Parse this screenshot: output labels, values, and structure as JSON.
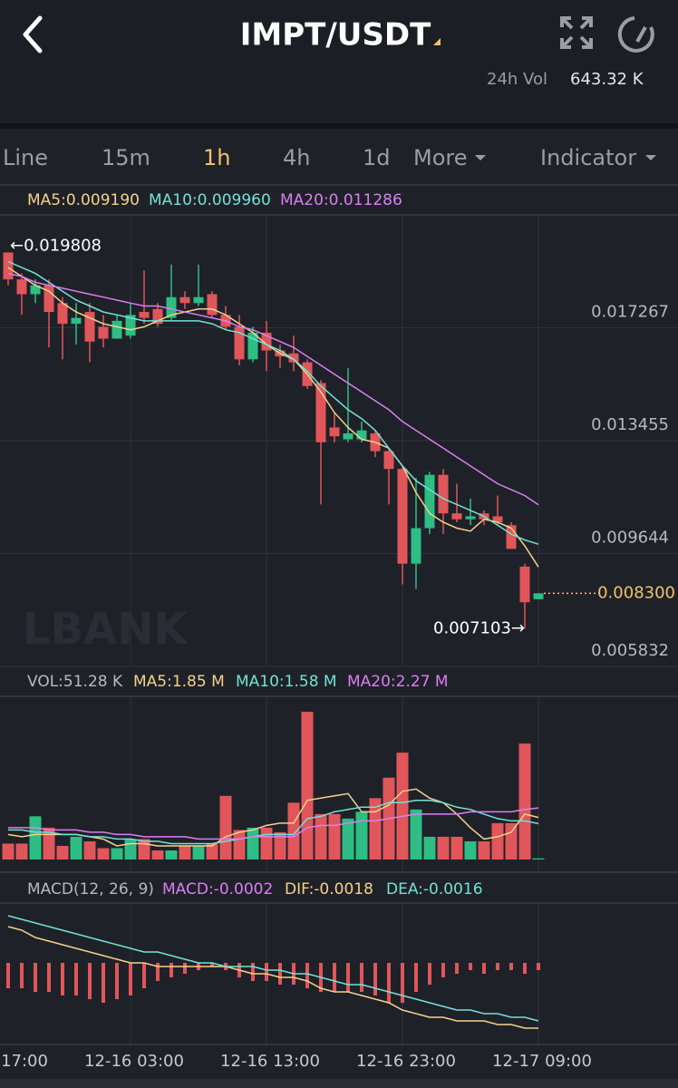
{
  "header": {
    "title": "IMPT/USDT",
    "vol_label": "24h Vol",
    "vol_value": "643.32 K"
  },
  "tabs": [
    "Line",
    "15m",
    "1h",
    "4h",
    "1d",
    "More",
    "Indicator"
  ],
  "active_tab": 2,
  "watermark": "LBANK",
  "chart_data": [
    {
      "type": "candlestick",
      "xlim": [
        -0.6,
        39.8
      ],
      "xticks": [
        {
          "value": -1,
          "label": "17:00"
        },
        {
          "value": 9,
          "label": "12-16 03:00"
        },
        {
          "value": 19,
          "label": "12-16 13:00"
        },
        {
          "value": 29,
          "label": "12-16 23:00"
        },
        {
          "value": 39,
          "label": "12-17 09:00"
        }
      ],
      "ylim": [
        0.005832,
        0.021078
      ],
      "yticks": [
        0.005832,
        0.009644,
        0.013455,
        0.017267
      ],
      "grid": true,
      "up_color": "#2dbd85",
      "down_color": "#e0565b",
      "open": [
        0.019808,
        0.0189,
        0.0184,
        0.0187,
        0.0181,
        0.0174,
        0.0178,
        0.0173,
        0.0169,
        0.017,
        0.0178,
        0.0179,
        0.0176,
        0.0183,
        0.0181,
        0.0184,
        0.0177,
        0.0173,
        0.0162,
        0.0171,
        0.0165,
        0.0164,
        0.0161,
        0.0154,
        0.0139,
        0.0135,
        0.0135,
        0.0137,
        0.0131,
        0.0125,
        0.0093,
        0.0105,
        0.0123,
        0.011,
        0.0108,
        0.011,
        0.0109,
        0.0106,
        0.0092,
        0.0081
      ],
      "high": [
        0.019808,
        0.0191,
        0.0189,
        0.0189,
        0.0183,
        0.0181,
        0.0181,
        0.0177,
        0.0177,
        0.0181,
        0.0192,
        0.0181,
        0.0194,
        0.0185,
        0.0194,
        0.0185,
        0.018,
        0.0177,
        0.0173,
        0.0175,
        0.0167,
        0.017,
        0.0162,
        0.0155,
        0.0144,
        0.0159,
        0.0141,
        0.0138,
        0.0132,
        0.0126,
        0.0122,
        0.0124,
        0.0125,
        0.012,
        0.0115,
        0.0111,
        0.0116,
        0.0107,
        0.0093,
        0.0083
      ],
      "low": [
        0.0187,
        0.0177,
        0.0181,
        0.0166,
        0.0162,
        0.0167,
        0.0161,
        0.0166,
        0.0169,
        0.0169,
        0.0174,
        0.0173,
        0.0175,
        0.0179,
        0.018,
        0.0176,
        0.0172,
        0.016,
        0.0161,
        0.0158,
        0.0159,
        0.0158,
        0.0152,
        0.0113,
        0.0134,
        0.0134,
        0.0134,
        0.0129,
        0.0113,
        0.0086,
        0.00845,
        0.0103,
        0.0103,
        0.0107,
        0.0106,
        0.0106,
        0.0106,
        0.0098,
        0.007103,
        0.0081
      ],
      "close": [
        0.0189,
        0.0184,
        0.0187,
        0.0178,
        0.0174,
        0.0176,
        0.0168,
        0.0169,
        0.0175,
        0.0177,
        0.0176,
        0.0174,
        0.0183,
        0.0181,
        0.0183,
        0.0177,
        0.0173,
        0.0162,
        0.0171,
        0.0165,
        0.0163,
        0.0161,
        0.0153,
        0.0134,
        0.0136,
        0.0137,
        0.0138,
        0.0131,
        0.0125,
        0.0093,
        0.0105,
        0.0123,
        0.011,
        0.0108,
        0.0109,
        0.0108,
        0.0107,
        0.0098,
        0.008,
        0.0083
      ],
      "series": [
        {
          "name": "MA5:0.009190",
          "color": "#f3d28a",
          "values": [
            0.0193,
            0.019,
            0.0187,
            0.0185,
            0.0181,
            0.0178,
            0.0176,
            0.0174,
            0.0173,
            0.0172,
            0.0173,
            0.0175,
            0.0177,
            0.0178,
            0.0179,
            0.0179,
            0.0177,
            0.0174,
            0.0171,
            0.0167,
            0.0164,
            0.0162,
            0.0157,
            0.0151,
            0.0144,
            0.0139,
            0.0135,
            0.0134,
            0.0132,
            0.0126,
            0.0117,
            0.011,
            0.0107,
            0.0105,
            0.0104,
            0.0108,
            0.0107,
            0.0105,
            0.0099,
            0.00919
          ]
        },
        {
          "name": "MA10:0.009960",
          "color": "#72e2d6",
          "values": [
            0.0195,
            0.0193,
            0.0191,
            0.0188,
            0.0185,
            0.0182,
            0.018,
            0.0178,
            0.0177,
            0.0176,
            0.0175,
            0.0175,
            0.0175,
            0.0175,
            0.0175,
            0.0174,
            0.0172,
            0.0171,
            0.0169,
            0.0167,
            0.0165,
            0.0162,
            0.0158,
            0.0153,
            0.0149,
            0.0145,
            0.0142,
            0.0138,
            0.0132,
            0.0126,
            0.0121,
            0.0118,
            0.0115,
            0.0113,
            0.0111,
            0.0109,
            0.0106,
            0.0103,
            0.0101,
            0.00996
          ]
        },
        {
          "name": "MA20:0.011286",
          "color": "#da7ff2",
          "values": [
            0.0191,
            0.019,
            0.0188,
            0.0187,
            0.0186,
            0.0185,
            0.0184,
            0.0183,
            0.0182,
            0.0181,
            0.018,
            0.018,
            0.0179,
            0.0178,
            0.0177,
            0.0176,
            0.0175,
            0.0173,
            0.0172,
            0.017,
            0.0168,
            0.0166,
            0.0163,
            0.016,
            0.0157,
            0.0154,
            0.0151,
            0.0148,
            0.0145,
            0.0141,
            0.0138,
            0.0135,
            0.0132,
            0.0129,
            0.0126,
            0.0123,
            0.012,
            0.0118,
            0.0116,
            0.011286
          ]
        }
      ],
      "annotations": [
        {
          "label": "←0.019808",
          "value": 0.019808,
          "index": 0
        },
        {
          "label": "0.007103→",
          "value": 0.007103,
          "index": 38
        }
      ],
      "last_price": {
        "value": 0.0083,
        "label": "0.008300",
        "color": "#f0c26a"
      }
    },
    {
      "type": "bar",
      "title": "VOL:51.28 K",
      "ylim": [
        0,
        7.1
      ],
      "values": [
        0.7,
        0.7,
        1.9,
        1.4,
        0.6,
        1.0,
        0.8,
        0.5,
        0.5,
        0.9,
        0.9,
        0.4,
        0.4,
        0.6,
        0.6,
        0.7,
        2.8,
        1.3,
        1.4,
        1.4,
        1.2,
        2.5,
        6.5,
        2.0,
        2.0,
        1.8,
        2.1,
        2.7,
        3.6,
        4.7,
        2.2,
        1.0,
        1.0,
        1.0,
        0.8,
        0.8,
        1.6,
        1.6,
        5.1,
        0.05128
      ],
      "series": [
        {
          "name": "MA5:1.85 M",
          "color": "#f3d28a",
          "values": [
            1.1,
            1.0,
            1.1,
            1.1,
            1.1,
            1.1,
            1.0,
            0.9,
            0.6,
            0.7,
            0.7,
            0.6,
            0.6,
            0.6,
            0.6,
            0.6,
            1.0,
            1.2,
            1.3,
            1.5,
            1.6,
            1.6,
            2.6,
            2.7,
            2.8,
            2.9,
            2.1,
            2.1,
            2.4,
            3.0,
            3.1,
            2.7,
            2.5,
            2.0,
            1.4,
            0.9,
            1.0,
            1.2,
            2.0,
            1.85
          ]
        },
        {
          "name": "MA10:1.58 M",
          "color": "#72e2d6",
          "values": [
            1.3,
            1.3,
            1.2,
            1.2,
            1.1,
            1.1,
            1.0,
            1.0,
            0.9,
            0.9,
            0.8,
            0.8,
            0.7,
            0.7,
            0.7,
            0.7,
            0.8,
            0.9,
            1.0,
            1.1,
            1.1,
            1.1,
            1.8,
            1.9,
            2.1,
            2.2,
            2.3,
            2.3,
            2.5,
            2.5,
            2.6,
            2.6,
            2.5,
            2.3,
            2.2,
            2.0,
            1.8,
            1.7,
            1.7,
            1.58
          ]
        },
        {
          "name": "MA20:2.27 M",
          "color": "#da7ff2",
          "values": [
            1.4,
            1.4,
            1.4,
            1.3,
            1.3,
            1.3,
            1.2,
            1.2,
            1.1,
            1.1,
            1.0,
            1.0,
            1.0,
            1.0,
            0.9,
            0.9,
            0.9,
            0.9,
            1.0,
            1.0,
            1.0,
            1.0,
            1.4,
            1.5,
            1.5,
            1.6,
            1.7,
            1.7,
            1.8,
            1.9,
            2.0,
            2.0,
            2.0,
            2.0,
            2.1,
            2.1,
            2.1,
            2.1,
            2.2,
            2.27
          ]
        }
      ]
    },
    {
      "type": "macd",
      "title": "MACD(12, 26, 9)",
      "ylim": [
        -0.0022,
        0.0018
      ],
      "histogram": {
        "name": "MACD:-0.0002",
        "color": "#da7ff2",
        "bar_color": "#e0565b",
        "values": [
          -0.0007,
          -0.0007,
          -0.0008,
          -0.0008,
          -0.0009,
          -0.0009,
          -0.001,
          -0.0011,
          -0.001,
          -0.0009,
          -0.0007,
          -0.0005,
          -0.0004,
          -0.0003,
          -0.0002,
          -0.0001,
          -0.0002,
          -0.0004,
          -0.0005,
          -0.0005,
          -0.0006,
          -0.0006,
          -0.0007,
          -0.0008,
          -0.0008,
          -0.0008,
          -0.0008,
          -0.0009,
          -0.0011,
          -0.0011,
          -0.0008,
          -0.0006,
          -0.0004,
          -0.0003,
          -0.0002,
          -0.0003,
          -0.0002,
          -0.0002,
          -0.0003,
          -0.0002
        ]
      },
      "series": [
        {
          "name": "DIF:-0.0018",
          "color": "#f3d28a",
          "values": [
            0.001,
            0.0009,
            0.0007,
            0.0006,
            0.0005,
            0.0004,
            0.0003,
            0.0002,
            0.0001,
            0.0,
            0.0,
            -0.0001,
            -0.0001,
            -0.0001,
            -0.0001,
            -0.0001,
            -0.0001,
            -0.0002,
            -0.0003,
            -0.0003,
            -0.0004,
            -0.0004,
            -0.0005,
            -0.0007,
            -0.0008,
            -0.0008,
            -0.0009,
            -0.001,
            -0.0011,
            -0.0013,
            -0.0014,
            -0.0015,
            -0.0015,
            -0.0016,
            -0.0016,
            -0.0016,
            -0.0017,
            -0.0017,
            -0.0018,
            -0.0018
          ]
        },
        {
          "name": "DEA:-0.0016",
          "color": "#72e2d6",
          "values": [
            0.0013,
            0.0012,
            0.0011,
            0.001,
            0.0009,
            0.0008,
            0.0007,
            0.0006,
            0.0005,
            0.0004,
            0.0003,
            0.0003,
            0.0002,
            0.0001,
            0.0,
            0.0,
            -0.0001,
            -0.0001,
            -0.0001,
            -0.0002,
            -0.0002,
            -0.0003,
            -0.0003,
            -0.0004,
            -0.0005,
            -0.0006,
            -0.0006,
            -0.0007,
            -0.0008,
            -0.0009,
            -0.001,
            -0.0011,
            -0.0012,
            -0.0013,
            -0.0013,
            -0.0014,
            -0.0014,
            -0.0015,
            -0.0015,
            -0.0016
          ]
        }
      ]
    }
  ]
}
